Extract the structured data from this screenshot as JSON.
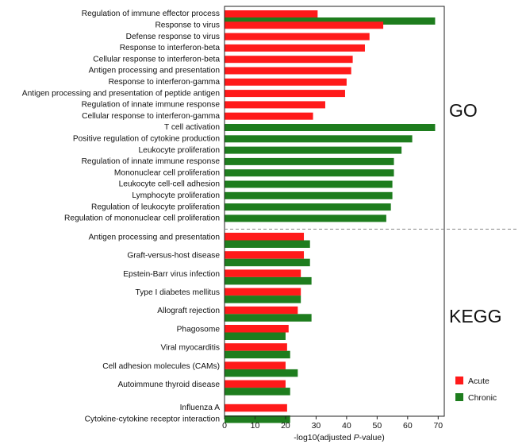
{
  "chart_data": {
    "type": "bar",
    "orientation": "horizontal",
    "xlabel_prefix": "-log10(adjusted ",
    "xlabel_italic": "P",
    "xlabel_suffix": "-value)",
    "xlim": [
      0,
      72
    ],
    "xticks": [
      0,
      10,
      20,
      30,
      40,
      50,
      60,
      70
    ],
    "legend": {
      "placement": "bottom-right",
      "items": [
        {
          "name": "Acute",
          "color": "#ff1a1a"
        },
        {
          "name": "Chronic",
          "color": "#1e7d1e"
        }
      ]
    },
    "sections": [
      {
        "label": "GO",
        "categories": [
          {
            "name": "Regulation of immune effector process",
            "acute": 30.5,
            "chronic": 69.0
          },
          {
            "name": "Response to virus",
            "acute": 52.0,
            "chronic": null
          },
          {
            "name": "Defense response to virus",
            "acute": 47.5,
            "chronic": null
          },
          {
            "name": "Response to interferon-beta",
            "acute": 46.0,
            "chronic": null
          },
          {
            "name": "Cellular response to interferon-beta",
            "acute": 42.0,
            "chronic": null
          },
          {
            "name": "Antigen processing and presentation",
            "acute": 41.5,
            "chronic": null
          },
          {
            "name": "Response to interferon-gamma",
            "acute": 40.0,
            "chronic": null
          },
          {
            "name": "Antigen processing and presentation of peptide antigen",
            "acute": 39.5,
            "chronic": null
          },
          {
            "name": "Regulation of innate immune response",
            "acute": 33.0,
            "chronic": null
          },
          {
            "name": "Cellular response to interferon-gamma",
            "acute": 29.0,
            "chronic": null
          },
          {
            "name": "T cell activation",
            "acute": null,
            "chronic": 69.0
          },
          {
            "name": "Positive regulation of cytokine production",
            "acute": null,
            "chronic": 61.5
          },
          {
            "name": "Leukocyte proliferation",
            "acute": null,
            "chronic": 58.0
          },
          {
            "name": "Regulation of innate immune response",
            "acute": null,
            "chronic": 55.5
          },
          {
            "name": "Mononuclear cell proliferation",
            "acute": null,
            "chronic": 55.5
          },
          {
            "name": "Leukocyte cell-cell adhesion",
            "acute": null,
            "chronic": 55.0
          },
          {
            "name": "Lymphocyte proliferation",
            "acute": null,
            "chronic": 55.0
          },
          {
            "name": "Regulation of leukocyte proliferation",
            "acute": null,
            "chronic": 54.5
          },
          {
            "name": "Regulation of mononuclear cell proliferation",
            "acute": null,
            "chronic": 53.0
          }
        ]
      },
      {
        "label": "KEGG",
        "categories": [
          {
            "name": "Antigen processing and presentation",
            "acute": 26.0,
            "chronic": 28.0
          },
          {
            "name": "Graft-versus-host disease",
            "acute": 26.0,
            "chronic": 28.0
          },
          {
            "name": "Epstein-Barr virus infection",
            "acute": 25.0,
            "chronic": 28.5
          },
          {
            "name": "Type I diabetes mellitus",
            "acute": 25.0,
            "chronic": 25.0
          },
          {
            "name": "Allograft rejection",
            "acute": 24.0,
            "chronic": 28.5
          },
          {
            "name": "Phagosome",
            "acute": 21.0,
            "chronic": 20.0
          },
          {
            "name": "Viral myocarditis",
            "acute": 20.5,
            "chronic": 21.5
          },
          {
            "name": "Cell adhesion molecules (CAMs)",
            "acute": 20.0,
            "chronic": 24.0
          },
          {
            "name": "Autoimmune thyroid disease",
            "acute": 20.0,
            "chronic": 21.5
          },
          {
            "name": "Influenza A",
            "acute": 20.5,
            "chronic": null
          },
          {
            "name": "Cytokine-cytokine receptor interaction",
            "acute": null,
            "chronic": 21.5
          }
        ]
      }
    ]
  }
}
